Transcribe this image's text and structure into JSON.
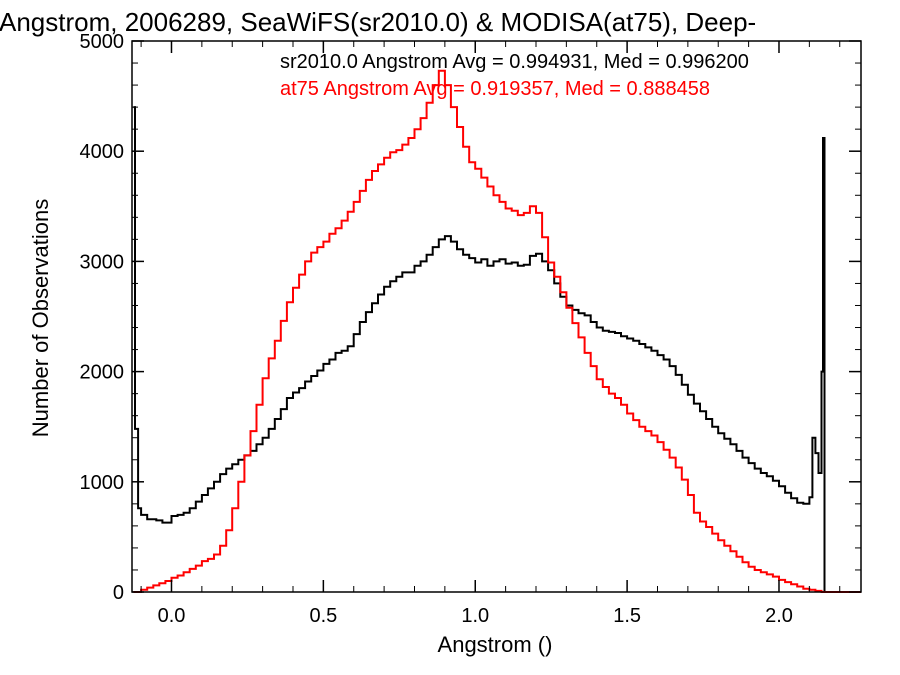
{
  "chart_data": {
    "type": "line",
    "step": true,
    "title": "Angstrom, 2006289, SeaWiFS(sr2010.0) & MODISA(at75), Deep-",
    "xlabel": "Angstrom ()",
    "ylabel": "Number of Observations",
    "xlim": [
      -0.13,
      2.27
    ],
    "ylim": [
      0,
      5000
    ],
    "x_ticks": [
      "0.0",
      "0.5",
      "1.0",
      "1.5",
      "2.0"
    ],
    "y_ticks": [
      "0",
      "1000",
      "2000",
      "3000",
      "4000",
      "5000"
    ],
    "grid": false,
    "legend_position": "top-right",
    "series": [
      {
        "name": "sr2010.0",
        "color": "#000000",
        "stats_label": "sr2010.0 Angstrom Avg = 0.994931, Med = 0.996200",
        "points": [
          [
            -0.125,
            4400
          ],
          [
            -0.12,
            1480
          ],
          [
            -0.11,
            760
          ],
          [
            -0.1,
            700
          ],
          [
            -0.08,
            660
          ],
          [
            -0.05,
            650
          ],
          [
            -0.03,
            630
          ],
          [
            0.0,
            690
          ],
          [
            0.02,
            700
          ],
          [
            0.04,
            720
          ],
          [
            0.06,
            760
          ],
          [
            0.08,
            820
          ],
          [
            0.1,
            880
          ],
          [
            0.12,
            940
          ],
          [
            0.14,
            1000
          ],
          [
            0.16,
            1070
          ],
          [
            0.18,
            1120
          ],
          [
            0.2,
            1160
          ],
          [
            0.22,
            1200
          ],
          [
            0.24,
            1240
          ],
          [
            0.26,
            1280
          ],
          [
            0.28,
            1340
          ],
          [
            0.3,
            1400
          ],
          [
            0.32,
            1480
          ],
          [
            0.34,
            1570
          ],
          [
            0.36,
            1660
          ],
          [
            0.38,
            1760
          ],
          [
            0.4,
            1810
          ],
          [
            0.42,
            1850
          ],
          [
            0.44,
            1910
          ],
          [
            0.46,
            1960
          ],
          [
            0.48,
            2010
          ],
          [
            0.5,
            2070
          ],
          [
            0.52,
            2110
          ],
          [
            0.54,
            2170
          ],
          [
            0.56,
            2190
          ],
          [
            0.58,
            2230
          ],
          [
            0.6,
            2340
          ],
          [
            0.62,
            2450
          ],
          [
            0.64,
            2540
          ],
          [
            0.66,
            2620
          ],
          [
            0.68,
            2700
          ],
          [
            0.7,
            2770
          ],
          [
            0.72,
            2820
          ],
          [
            0.74,
            2860
          ],
          [
            0.76,
            2900
          ],
          [
            0.78,
            2900
          ],
          [
            0.8,
            2960
          ],
          [
            0.82,
            3000
          ],
          [
            0.84,
            3060
          ],
          [
            0.86,
            3130
          ],
          [
            0.88,
            3200
          ],
          [
            0.9,
            3230
          ],
          [
            0.92,
            3180
          ],
          [
            0.94,
            3110
          ],
          [
            0.96,
            3060
          ],
          [
            0.98,
            3030
          ],
          [
            1.0,
            2990
          ],
          [
            1.02,
            3020
          ],
          [
            1.04,
            2960
          ],
          [
            1.06,
            3000
          ],
          [
            1.08,
            3020
          ],
          [
            1.1,
            2980
          ],
          [
            1.12,
            2990
          ],
          [
            1.14,
            2960
          ],
          [
            1.16,
            2970
          ],
          [
            1.18,
            3050
          ],
          [
            1.2,
            3070
          ],
          [
            1.22,
            3000
          ],
          [
            1.24,
            2920
          ],
          [
            1.26,
            2800
          ],
          [
            1.28,
            2680
          ],
          [
            1.3,
            2600
          ],
          [
            1.32,
            2560
          ],
          [
            1.34,
            2530
          ],
          [
            1.36,
            2510
          ],
          [
            1.38,
            2450
          ],
          [
            1.4,
            2400
          ],
          [
            1.42,
            2370
          ],
          [
            1.44,
            2360
          ],
          [
            1.46,
            2350
          ],
          [
            1.48,
            2320
          ],
          [
            1.5,
            2300
          ],
          [
            1.52,
            2280
          ],
          [
            1.54,
            2250
          ],
          [
            1.56,
            2220
          ],
          [
            1.58,
            2190
          ],
          [
            1.6,
            2150
          ],
          [
            1.62,
            2110
          ],
          [
            1.64,
            2050
          ],
          [
            1.66,
            1970
          ],
          [
            1.68,
            1880
          ],
          [
            1.7,
            1790
          ],
          [
            1.72,
            1710
          ],
          [
            1.74,
            1640
          ],
          [
            1.76,
            1570
          ],
          [
            1.78,
            1500
          ],
          [
            1.8,
            1440
          ],
          [
            1.82,
            1390
          ],
          [
            1.84,
            1340
          ],
          [
            1.86,
            1280
          ],
          [
            1.88,
            1220
          ],
          [
            1.9,
            1170
          ],
          [
            1.92,
            1120
          ],
          [
            1.94,
            1080
          ],
          [
            1.96,
            1050
          ],
          [
            1.98,
            1010
          ],
          [
            2.0,
            960
          ],
          [
            2.02,
            900
          ],
          [
            2.04,
            850
          ],
          [
            2.06,
            810
          ],
          [
            2.08,
            800
          ],
          [
            2.1,
            860
          ],
          [
            2.11,
            1400
          ],
          [
            2.12,
            1260
          ],
          [
            2.13,
            1080
          ],
          [
            2.14,
            2000
          ],
          [
            2.145,
            4120
          ],
          [
            2.15,
            0
          ],
          [
            2.27,
            0
          ]
        ]
      },
      {
        "name": "at75",
        "color": "#ff0000",
        "stats_label": "at75 Angstrom Avg = 0.919357, Med = 0.888458",
        "points": [
          [
            -0.125,
            0
          ],
          [
            -0.1,
            20
          ],
          [
            -0.08,
            40
          ],
          [
            -0.06,
            60
          ],
          [
            -0.04,
            80
          ],
          [
            -0.02,
            100
          ],
          [
            0.0,
            130
          ],
          [
            0.02,
            150
          ],
          [
            0.04,
            180
          ],
          [
            0.06,
            210
          ],
          [
            0.08,
            240
          ],
          [
            0.1,
            280
          ],
          [
            0.12,
            300
          ],
          [
            0.14,
            340
          ],
          [
            0.16,
            420
          ],
          [
            0.18,
            560
          ],
          [
            0.2,
            760
          ],
          [
            0.22,
            1000
          ],
          [
            0.24,
            1240
          ],
          [
            0.26,
            1460
          ],
          [
            0.28,
            1700
          ],
          [
            0.3,
            1940
          ],
          [
            0.32,
            2120
          ],
          [
            0.34,
            2280
          ],
          [
            0.36,
            2460
          ],
          [
            0.38,
            2630
          ],
          [
            0.4,
            2760
          ],
          [
            0.42,
            2880
          ],
          [
            0.44,
            3000
          ],
          [
            0.46,
            3080
          ],
          [
            0.48,
            3130
          ],
          [
            0.5,
            3180
          ],
          [
            0.52,
            3250
          ],
          [
            0.54,
            3300
          ],
          [
            0.56,
            3370
          ],
          [
            0.58,
            3450
          ],
          [
            0.6,
            3540
          ],
          [
            0.62,
            3640
          ],
          [
            0.64,
            3740
          ],
          [
            0.66,
            3820
          ],
          [
            0.68,
            3880
          ],
          [
            0.7,
            3940
          ],
          [
            0.72,
            3990
          ],
          [
            0.74,
            4010
          ],
          [
            0.76,
            4060
          ],
          [
            0.78,
            4120
          ],
          [
            0.8,
            4200
          ],
          [
            0.82,
            4300
          ],
          [
            0.84,
            4440
          ],
          [
            0.86,
            4600
          ],
          [
            0.88,
            4730
          ],
          [
            0.9,
            4600
          ],
          [
            0.92,
            4400
          ],
          [
            0.94,
            4220
          ],
          [
            0.96,
            4040
          ],
          [
            0.98,
            3900
          ],
          [
            1.0,
            3840
          ],
          [
            1.02,
            3760
          ],
          [
            1.04,
            3680
          ],
          [
            1.06,
            3600
          ],
          [
            1.08,
            3540
          ],
          [
            1.1,
            3480
          ],
          [
            1.12,
            3460
          ],
          [
            1.14,
            3420
          ],
          [
            1.16,
            3440
          ],
          [
            1.18,
            3500
          ],
          [
            1.2,
            3440
          ],
          [
            1.22,
            3220
          ],
          [
            1.24,
            2990
          ],
          [
            1.26,
            2860
          ],
          [
            1.28,
            2720
          ],
          [
            1.3,
            2580
          ],
          [
            1.32,
            2440
          ],
          [
            1.34,
            2310
          ],
          [
            1.36,
            2170
          ],
          [
            1.38,
            2050
          ],
          [
            1.4,
            1930
          ],
          [
            1.42,
            1860
          ],
          [
            1.44,
            1800
          ],
          [
            1.46,
            1760
          ],
          [
            1.48,
            1700
          ],
          [
            1.5,
            1620
          ],
          [
            1.52,
            1560
          ],
          [
            1.54,
            1500
          ],
          [
            1.56,
            1460
          ],
          [
            1.58,
            1420
          ],
          [
            1.6,
            1360
          ],
          [
            1.62,
            1290
          ],
          [
            1.64,
            1220
          ],
          [
            1.66,
            1130
          ],
          [
            1.68,
            1020
          ],
          [
            1.7,
            880
          ],
          [
            1.72,
            720
          ],
          [
            1.74,
            640
          ],
          [
            1.76,
            590
          ],
          [
            1.78,
            530
          ],
          [
            1.8,
            470
          ],
          [
            1.82,
            420
          ],
          [
            1.84,
            370
          ],
          [
            1.86,
            320
          ],
          [
            1.88,
            270
          ],
          [
            1.9,
            230
          ],
          [
            1.92,
            200
          ],
          [
            1.94,
            180
          ],
          [
            1.96,
            160
          ],
          [
            1.98,
            140
          ],
          [
            2.0,
            110
          ],
          [
            2.02,
            90
          ],
          [
            2.04,
            70
          ],
          [
            2.06,
            50
          ],
          [
            2.08,
            30
          ],
          [
            2.1,
            20
          ],
          [
            2.12,
            10
          ],
          [
            2.14,
            0
          ],
          [
            2.27,
            0
          ]
        ]
      }
    ]
  }
}
